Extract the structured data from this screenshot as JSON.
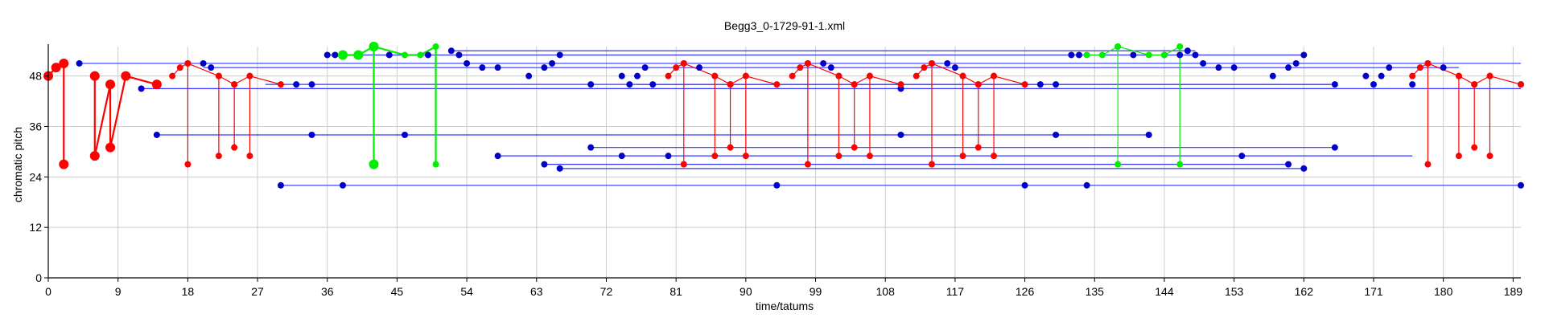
{
  "chart_data": {
    "type": "scatter",
    "title": "Begg3_0-1729-91-1.xml",
    "xlabel": "time/tatums",
    "ylabel": "chromatic pitch",
    "xlim": [
      0,
      190
    ],
    "ylim": [
      0,
      55
    ],
    "xticks": [
      0,
      9,
      18,
      27,
      36,
      45,
      54,
      63,
      72,
      81,
      90,
      99,
      108,
      117,
      126,
      135,
      144,
      153,
      162,
      171,
      180,
      189
    ],
    "yticks": [
      0,
      12,
      24,
      36,
      48
    ],
    "grid": true,
    "colors": {
      "blue": "#0000cc",
      "red": "#ff0000",
      "green": "#00ee00",
      "blue_line": "#3333ff"
    },
    "blue_lines": [
      [
        4,
        51,
        190,
        51
      ],
      [
        12,
        45,
        190,
        45
      ],
      [
        14,
        34,
        142,
        34
      ],
      [
        30,
        22,
        190,
        22
      ],
      [
        36,
        53,
        162,
        53
      ],
      [
        52,
        54,
        148,
        54
      ],
      [
        58,
        29,
        176,
        29
      ],
      [
        64,
        27,
        160,
        27
      ],
      [
        66,
        26,
        162,
        26
      ],
      [
        70,
        31,
        166,
        31
      ],
      [
        76,
        46,
        166,
        46
      ],
      [
        20,
        50,
        182,
        50
      ],
      [
        28,
        46,
        166,
        46
      ]
    ],
    "blue_points": [
      [
        4,
        51
      ],
      [
        12,
        45
      ],
      [
        14,
        34
      ],
      [
        20,
        51
      ],
      [
        21,
        50
      ],
      [
        30,
        22
      ],
      [
        32,
        46
      ],
      [
        34,
        46
      ],
      [
        34,
        34
      ],
      [
        36,
        53
      ],
      [
        37,
        53
      ],
      [
        38,
        22
      ],
      [
        44,
        53
      ],
      [
        46,
        34
      ],
      [
        49,
        53
      ],
      [
        52,
        54
      ],
      [
        53,
        53
      ],
      [
        54,
        51
      ],
      [
        56,
        50
      ],
      [
        58,
        50
      ],
      [
        58,
        29
      ],
      [
        62,
        48
      ],
      [
        64,
        50
      ],
      [
        64,
        27
      ],
      [
        65,
        51
      ],
      [
        66,
        53
      ],
      [
        66,
        26
      ],
      [
        70,
        46
      ],
      [
        70,
        31
      ],
      [
        74,
        48
      ],
      [
        74,
        29
      ],
      [
        75,
        46
      ],
      [
        76,
        48
      ],
      [
        77,
        50
      ],
      [
        78,
        46
      ],
      [
        80,
        29
      ],
      [
        84,
        50
      ],
      [
        94,
        22
      ],
      [
        100,
        51
      ],
      [
        101,
        50
      ],
      [
        110,
        45
      ],
      [
        110,
        34
      ],
      [
        116,
        51
      ],
      [
        117,
        50
      ],
      [
        126,
        22
      ],
      [
        128,
        46
      ],
      [
        130,
        46
      ],
      [
        130,
        34
      ],
      [
        132,
        53
      ],
      [
        133,
        53
      ],
      [
        134,
        22
      ],
      [
        140,
        53
      ],
      [
        142,
        34
      ],
      [
        144,
        53
      ],
      [
        146,
        53
      ],
      [
        147,
        54
      ],
      [
        148,
        53
      ],
      [
        149,
        51
      ],
      [
        151,
        50
      ],
      [
        153,
        50
      ],
      [
        154,
        29
      ],
      [
        158,
        48
      ],
      [
        160,
        50
      ],
      [
        160,
        27
      ],
      [
        161,
        51
      ],
      [
        162,
        53
      ],
      [
        162,
        26
      ],
      [
        166,
        46
      ],
      [
        166,
        31
      ],
      [
        170,
        48
      ],
      [
        171,
        46
      ],
      [
        172,
        48
      ],
      [
        173,
        50
      ],
      [
        176,
        46
      ],
      [
        180,
        50
      ],
      [
        190,
        22
      ],
      [
        190,
        46
      ]
    ],
    "red_segments": [
      [
        [
          0,
          48
        ],
        [
          1,
          50
        ],
        [
          2,
          51
        ],
        [
          2,
          27
        ]
      ],
      [
        [
          6,
          48
        ],
        [
          6,
          29
        ],
        [
          8,
          46
        ],
        [
          8,
          31
        ],
        [
          10,
          48
        ],
        [
          14,
          46
        ]
      ],
      [
        [
          16,
          48
        ],
        [
          17,
          50
        ],
        [
          18,
          51
        ],
        [
          18,
          27
        ]
      ],
      [
        [
          18,
          51
        ],
        [
          22,
          48
        ],
        [
          22,
          29
        ]
      ],
      [
        [
          22,
          48
        ],
        [
          24,
          46
        ],
        [
          24,
          31
        ]
      ],
      [
        [
          24,
          46
        ],
        [
          26,
          48
        ],
        [
          26,
          29
        ]
      ],
      [
        [
          26,
          48
        ],
        [
          30,
          46
        ]
      ],
      [
        [
          80,
          48
        ],
        [
          81,
          50
        ],
        [
          82,
          51
        ],
        [
          82,
          27
        ]
      ],
      [
        [
          82,
          51
        ],
        [
          86,
          48
        ],
        [
          86,
          29
        ]
      ],
      [
        [
          86,
          48
        ],
        [
          88,
          46
        ],
        [
          88,
          31
        ]
      ],
      [
        [
          88,
          46
        ],
        [
          90,
          48
        ],
        [
          90,
          29
        ]
      ],
      [
        [
          90,
          48
        ],
        [
          94,
          46
        ]
      ],
      [
        [
          96,
          48
        ],
        [
          97,
          50
        ],
        [
          98,
          51
        ],
        [
          98,
          27
        ]
      ],
      [
        [
          98,
          51
        ],
        [
          102,
          48
        ],
        [
          102,
          29
        ]
      ],
      [
        [
          102,
          48
        ],
        [
          104,
          46
        ],
        [
          104,
          31
        ]
      ],
      [
        [
          104,
          46
        ],
        [
          106,
          48
        ],
        [
          106,
          29
        ]
      ],
      [
        [
          106,
          48
        ],
        [
          110,
          46
        ]
      ],
      [
        [
          112,
          48
        ],
        [
          113,
          50
        ],
        [
          114,
          51
        ],
        [
          114,
          27
        ]
      ],
      [
        [
          114,
          51
        ],
        [
          118,
          48
        ],
        [
          118,
          29
        ]
      ],
      [
        [
          118,
          48
        ],
        [
          120,
          46
        ],
        [
          120,
          31
        ]
      ],
      [
        [
          120,
          46
        ],
        [
          122,
          48
        ],
        [
          122,
          29
        ]
      ],
      [
        [
          122,
          48
        ],
        [
          126,
          46
        ]
      ],
      [
        [
          176,
          48
        ],
        [
          177,
          50
        ],
        [
          178,
          51
        ],
        [
          178,
          27
        ]
      ],
      [
        [
          178,
          51
        ],
        [
          182,
          48
        ],
        [
          182,
          29
        ]
      ],
      [
        [
          182,
          48
        ],
        [
          184,
          46
        ],
        [
          184,
          31
        ]
      ],
      [
        [
          184,
          46
        ],
        [
          186,
          48
        ],
        [
          186,
          29
        ]
      ],
      [
        [
          186,
          48
        ],
        [
          190,
          46
        ]
      ]
    ],
    "red_big_points": [
      [
        0,
        48
      ],
      [
        1,
        50
      ],
      [
        2,
        51
      ],
      [
        2,
        27
      ],
      [
        6,
        48
      ],
      [
        6,
        29
      ],
      [
        8,
        46
      ],
      [
        8,
        31
      ],
      [
        10,
        48
      ],
      [
        10,
        29
      ],
      [
        14,
        46
      ]
    ],
    "green_segments": [
      [
        [
          38,
          53
        ],
        [
          40,
          53
        ],
        [
          42,
          55
        ],
        [
          42,
          27
        ]
      ],
      [
        [
          42,
          55
        ],
        [
          46,
          53
        ],
        [
          48,
          53
        ],
        [
          50,
          55
        ],
        [
          50,
          27
        ]
      ],
      [
        [
          134,
          53
        ],
        [
          136,
          53
        ],
        [
          138,
          55
        ],
        [
          138,
          27
        ]
      ],
      [
        [
          138,
          55
        ],
        [
          142,
          53
        ],
        [
          144,
          53
        ],
        [
          146,
          55
        ],
        [
          146,
          27
        ]
      ]
    ],
    "green_big_points": [
      [
        38,
        53
      ],
      [
        40,
        53
      ],
      [
        42,
        55
      ],
      [
        42,
        27
      ]
    ]
  }
}
